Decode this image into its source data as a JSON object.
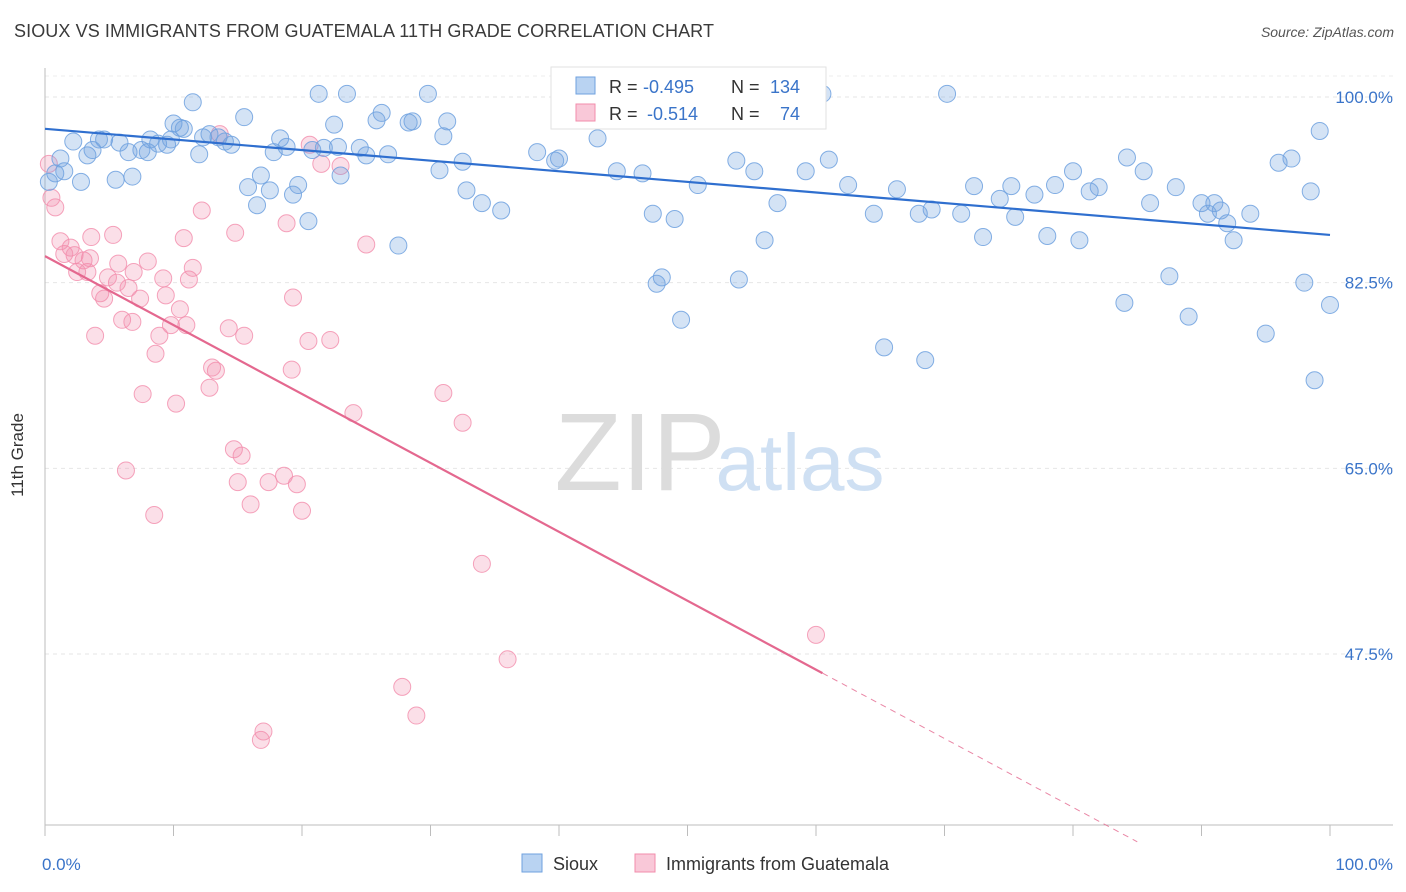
{
  "title": "SIOUX VS IMMIGRANTS FROM GUATEMALA 11TH GRADE CORRELATION CHART",
  "source": "Source: ZipAtlas.com",
  "watermark": {
    "zip": "ZIP",
    "atlas": "atlas"
  },
  "chart_data": {
    "type": "scatter",
    "ylabel": "11th Grade",
    "xlim": [
      0,
      100
    ],
    "ylim": [
      30,
      102
    ],
    "x_ticks": [
      "0.0%",
      "100.0%"
    ],
    "y_ticks": [
      {
        "value": 100.0,
        "label": "100.0%"
      },
      {
        "value": 82.5,
        "label": "82.5%"
      },
      {
        "value": 65.0,
        "label": "65.0%"
      },
      {
        "value": 47.5,
        "label": "47.5%"
      }
    ],
    "grid": true,
    "legend_placement": "top-center",
    "colors": {
      "sioux": "#6fa1df",
      "sioux_line": "#2f6fcf",
      "guatemala": "#f28cab",
      "guatemala_line": "#e4688f",
      "axis_label": "#3a74c9"
    },
    "stats": [
      {
        "r_label": "R = ",
        "r": "-0.495",
        "n_label": "N = ",
        "n": "134"
      },
      {
        "r_label": "R = ",
        "r": "-0.514",
        "n_label": "N = ",
        "n": "74"
      }
    ],
    "series": [
      {
        "name": "Sioux",
        "trend": {
          "x": [
            0,
            100
          ],
          "y": [
            97.0,
            87.0
          ]
        },
        "points": [
          [
            0.3,
            92
          ],
          [
            0.8,
            92.8
          ],
          [
            1.2,
            94.2
          ],
          [
            1.5,
            93
          ],
          [
            2.2,
            95.8
          ],
          [
            2.8,
            92
          ],
          [
            3.3,
            94.5
          ],
          [
            3.7,
            95
          ],
          [
            4.2,
            96
          ],
          [
            4.6,
            96
          ],
          [
            5.5,
            92.2
          ],
          [
            5.8,
            95.7
          ],
          [
            6.5,
            94.8
          ],
          [
            6.8,
            92.5
          ],
          [
            7.5,
            95
          ],
          [
            8,
            94.8
          ],
          [
            8.2,
            96
          ],
          [
            8.8,
            95.6
          ],
          [
            9.5,
            95.5
          ],
          [
            9.8,
            96
          ],
          [
            10,
            97.5
          ],
          [
            10.5,
            97.1
          ],
          [
            10.8,
            97
          ],
          [
            11.5,
            99.5
          ],
          [
            12,
            94.6
          ],
          [
            12.3,
            96.2
          ],
          [
            12.8,
            96.5
          ],
          [
            13.5,
            96.2
          ],
          [
            14,
            95.8
          ],
          [
            14.5,
            95.5
          ],
          [
            15.5,
            98.1
          ],
          [
            15.8,
            91.5
          ],
          [
            16.5,
            89.8
          ],
          [
            16.8,
            92.6
          ],
          [
            17.5,
            91.2
          ],
          [
            17.8,
            94.8
          ],
          [
            18.3,
            96.1
          ],
          [
            18.8,
            95.3
          ],
          [
            19.3,
            90.8
          ],
          [
            19.7,
            91.7
          ],
          [
            20.5,
            88.3
          ],
          [
            20.8,
            95
          ],
          [
            21.3,
            100.3
          ],
          [
            21.7,
            95.2
          ],
          [
            22.5,
            97.4
          ],
          [
            22.8,
            95.3
          ],
          [
            23,
            92.6
          ],
          [
            23.5,
            100.3
          ],
          [
            24.5,
            95.2
          ],
          [
            25,
            94.5
          ],
          [
            25.8,
            97.8
          ],
          [
            26.2,
            98.5
          ],
          [
            26.7,
            94.6
          ],
          [
            27.5,
            86
          ],
          [
            28.3,
            97.6
          ],
          [
            28.6,
            97.7
          ],
          [
            29.8,
            100.3
          ],
          [
            30.7,
            93.1
          ],
          [
            31,
            96.3
          ],
          [
            31.3,
            97.7
          ],
          [
            32.5,
            93.9
          ],
          [
            32.8,
            91.2
          ],
          [
            34,
            90
          ],
          [
            35.5,
            89.3
          ],
          [
            38.3,
            94.8
          ],
          [
            39.7,
            94
          ],
          [
            40,
            94.2
          ],
          [
            41.3,
            98
          ],
          [
            43,
            96.1
          ],
          [
            44.5,
            93
          ],
          [
            45.3,
            100.4
          ],
          [
            46.5,
            92.8
          ],
          [
            47.3,
            89
          ],
          [
            47.6,
            82.4
          ],
          [
            48,
            83
          ],
          [
            49,
            88.5
          ],
          [
            49.5,
            79
          ],
          [
            50.8,
            91.7
          ],
          [
            53.8,
            94
          ],
          [
            54,
            82.8
          ],
          [
            55.2,
            93
          ],
          [
            56,
            86.5
          ],
          [
            57,
            90
          ],
          [
            59.2,
            93
          ],
          [
            60.5,
            100.3
          ],
          [
            61,
            94.1
          ],
          [
            62.5,
            91.7
          ],
          [
            64.5,
            89
          ],
          [
            65.3,
            76.4
          ],
          [
            66.3,
            91.3
          ],
          [
            68,
            89
          ],
          [
            68.5,
            75.2
          ],
          [
            69,
            89.4
          ],
          [
            70.2,
            100.3
          ],
          [
            71.3,
            89
          ],
          [
            72.3,
            91.6
          ],
          [
            73,
            86.8
          ],
          [
            74.3,
            90.4
          ],
          [
            75.2,
            91.6
          ],
          [
            75.5,
            88.7
          ],
          [
            77,
            90.8
          ],
          [
            78,
            86.9
          ],
          [
            78.6,
            91.7
          ],
          [
            80,
            93
          ],
          [
            80.5,
            86.5
          ],
          [
            81.3,
            91.1
          ],
          [
            82,
            91.5
          ],
          [
            84,
            80.6
          ],
          [
            84.2,
            94.3
          ],
          [
            85.5,
            93
          ],
          [
            86,
            90
          ],
          [
            87.5,
            83.1
          ],
          [
            88,
            91.5
          ],
          [
            89,
            79.3
          ],
          [
            90,
            90
          ],
          [
            90.5,
            89
          ],
          [
            91,
            90
          ],
          [
            91.5,
            89.3
          ],
          [
            92,
            88.1
          ],
          [
            92.5,
            86.5
          ],
          [
            93.8,
            89
          ],
          [
            95,
            77.7
          ],
          [
            96,
            93.8
          ],
          [
            97,
            94.2
          ],
          [
            98,
            82.5
          ],
          [
            98.5,
            91.1
          ],
          [
            98.8,
            73.3
          ],
          [
            99.2,
            96.8
          ],
          [
            100,
            80.4
          ]
        ]
      },
      {
        "name": "Immigrants from Guatemala",
        "trend": {
          "x": [
            0,
            60.5
          ],
          "y": [
            85.0,
            45.7
          ]
        },
        "trend_dashed": {
          "x": [
            60.5,
            85
          ],
          "y": [
            45.7,
            29.8
          ]
        },
        "points": [
          [
            0.3,
            93.7
          ],
          [
            0.5,
            90.5
          ],
          [
            0.8,
            89.6
          ],
          [
            1.2,
            86.4
          ],
          [
            1.5,
            85.2
          ],
          [
            2,
            85.8
          ],
          [
            2.3,
            85.1
          ],
          [
            2.5,
            83.5
          ],
          [
            3,
            84.6
          ],
          [
            3.3,
            83.5
          ],
          [
            3.5,
            84.8
          ],
          [
            3.6,
            86.8
          ],
          [
            3.9,
            77.5
          ],
          [
            4.3,
            81.5
          ],
          [
            4.6,
            81
          ],
          [
            4.9,
            83
          ],
          [
            5.3,
            87
          ],
          [
            5.6,
            82.5
          ],
          [
            5.7,
            84.3
          ],
          [
            6,
            79
          ],
          [
            6.3,
            64.8
          ],
          [
            6.5,
            82
          ],
          [
            6.8,
            78.8
          ],
          [
            6.9,
            83.5
          ],
          [
            7.4,
            81
          ],
          [
            7.6,
            72
          ],
          [
            8,
            84.5
          ],
          [
            8.5,
            60.6
          ],
          [
            8.6,
            75.8
          ],
          [
            8.9,
            77.5
          ],
          [
            9.2,
            82.9
          ],
          [
            9.4,
            81.3
          ],
          [
            9.8,
            78.5
          ],
          [
            10.2,
            71.1
          ],
          [
            10.5,
            80
          ],
          [
            10.8,
            86.7
          ],
          [
            11,
            78.5
          ],
          [
            11.2,
            82.8
          ],
          [
            11.5,
            83.9
          ],
          [
            12.2,
            89.3
          ],
          [
            12.8,
            72.6
          ],
          [
            13,
            74.5
          ],
          [
            13.3,
            74.2
          ],
          [
            13.6,
            96.5
          ],
          [
            14.3,
            78.2
          ],
          [
            14.7,
            66.8
          ],
          [
            14.8,
            87.2
          ],
          [
            15,
            63.7
          ],
          [
            15.3,
            66.2
          ],
          [
            15.5,
            77.5
          ],
          [
            16,
            61.6
          ],
          [
            16.8,
            39.4
          ],
          [
            17,
            40.2
          ],
          [
            17.4,
            63.7
          ],
          [
            18.6,
            64.3
          ],
          [
            18.8,
            88.1
          ],
          [
            19.2,
            74.3
          ],
          [
            19.3,
            81.1
          ],
          [
            19.6,
            63.5
          ],
          [
            20,
            61
          ],
          [
            20.5,
            77
          ],
          [
            20.6,
            95.5
          ],
          [
            21.5,
            93.7
          ],
          [
            22.2,
            77.1
          ],
          [
            23,
            93.5
          ],
          [
            24,
            70.2
          ],
          [
            25,
            86.1
          ],
          [
            27.8,
            44.4
          ],
          [
            28.9,
            41.7
          ],
          [
            31,
            72.1
          ],
          [
            32.5,
            69.3
          ],
          [
            34,
            56
          ],
          [
            36,
            47
          ],
          [
            60,
            49.3
          ]
        ]
      }
    ]
  },
  "legend": [
    {
      "label": "Sioux"
    },
    {
      "label": "Immigrants from Guatemala"
    }
  ]
}
